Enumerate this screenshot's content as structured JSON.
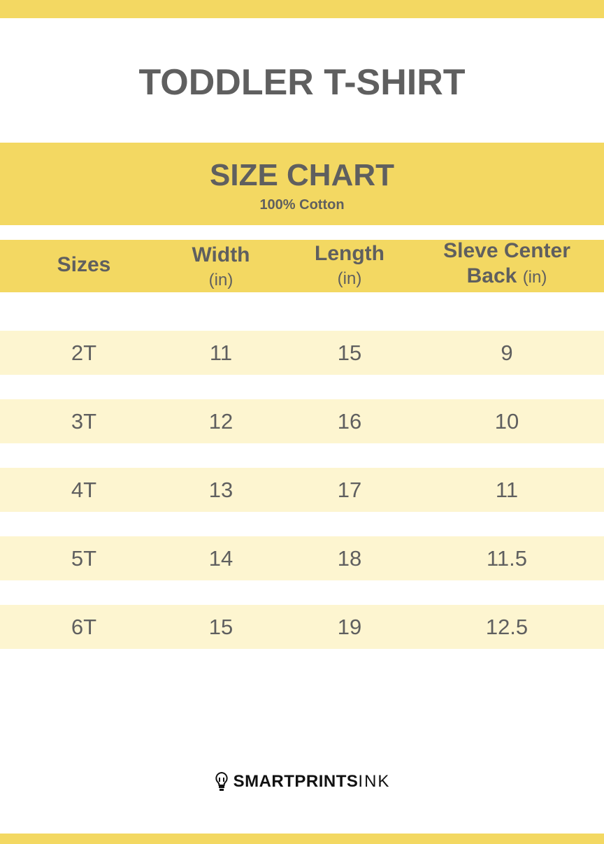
{
  "title": "TODDLER T-SHIRT",
  "band": {
    "heading": "SIZE CHART",
    "subheading": "100% Cotton"
  },
  "colors": {
    "accent": "#f3d862",
    "row": "#fdf5d0",
    "text": "#5f5f5f"
  },
  "columns": [
    {
      "label": "Sizes",
      "unit": ""
    },
    {
      "label": "Width",
      "unit": "(in)"
    },
    {
      "label": "Length",
      "unit": "(in)"
    },
    {
      "label": "Sleve Center",
      "label2": "Back",
      "unit": "(in)"
    }
  ],
  "rows": [
    [
      "2T",
      "11",
      "15",
      "9"
    ],
    [
      "3T",
      "12",
      "16",
      "10"
    ],
    [
      "4T",
      "13",
      "17",
      "11"
    ],
    [
      "5T",
      "14",
      "18",
      "11.5"
    ],
    [
      "6T",
      "15",
      "19",
      "12.5"
    ]
  ],
  "logo": {
    "icon": "lightbulb-icon",
    "bold": "SMARTPRINTS",
    "light": "INK"
  }
}
